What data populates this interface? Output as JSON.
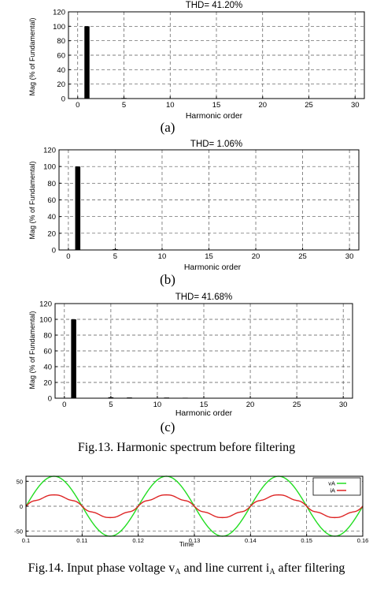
{
  "chart_data": [
    {
      "type": "bar",
      "panel": "(a)",
      "title": "THD= 41.20%",
      "xlabel": "Harmonic order",
      "ylabel": "Mag (% of Fundamental)",
      "xlim": [
        -1,
        31
      ],
      "ylim": [
        0,
        120
      ],
      "xticks": [
        0,
        5,
        10,
        15,
        20,
        25,
        30
      ],
      "yticks": [
        0,
        20,
        40,
        60,
        80,
        100,
        120
      ],
      "x": [
        1,
        5,
        7,
        11,
        13
      ],
      "values": [
        100,
        0.8,
        0.5,
        0.5,
        0.4
      ],
      "grid": true
    },
    {
      "type": "bar",
      "panel": "(b)",
      "title": "THD= 1.06%",
      "xlabel": "Harmonic order",
      "ylabel": "Mag (% of Fundamental)",
      "xlim": [
        -1,
        31
      ],
      "ylim": [
        0,
        120
      ],
      "xticks": [
        0,
        5,
        10,
        15,
        20,
        25,
        30
      ],
      "yticks": [
        0,
        20,
        40,
        60,
        80,
        100,
        120
      ],
      "x": [
        1,
        5
      ],
      "values": [
        100,
        0.9
      ],
      "grid": true
    },
    {
      "type": "bar",
      "panel": "(c)",
      "title": "THD= 41.68%",
      "xlabel": "Harmonic order",
      "ylabel": "Mag (% of Fundamental)",
      "xlim": [
        -1,
        31
      ],
      "ylim": [
        0,
        120
      ],
      "xticks": [
        0,
        5,
        10,
        15,
        20,
        25,
        30
      ],
      "yticks": [
        0,
        20,
        40,
        60,
        80,
        100,
        120
      ],
      "x": [
        1,
        5,
        7,
        11,
        13
      ],
      "values": [
        100,
        1.2,
        0.9,
        0.8,
        0.6
      ],
      "grid": true
    },
    {
      "type": "line",
      "xlabel": "Time",
      "xlim": [
        0.1,
        0.16
      ],
      "ylim": [
        -60,
        60
      ],
      "xticks": [
        0.1,
        0.11,
        0.12,
        0.13,
        0.14,
        0.15,
        0.16
      ],
      "xticklabels": [
        "0.1",
        "0.11",
        "0.12",
        "0.13",
        "0.14",
        "0.15",
        "0.16"
      ],
      "yticks": [
        -50,
        0,
        50
      ],
      "legend_position": "top-right",
      "grid": true,
      "series": [
        {
          "name": "vA",
          "color": "#22dd22",
          "amplitude": 60,
          "frequency_hz": 50,
          "phase": 0
        },
        {
          "name": "iA",
          "color": "#dd2222",
          "amplitude": 22,
          "frequency_hz": 50,
          "phase": 0
        }
      ]
    }
  ],
  "sub_labels": [
    "(a)",
    "(b)",
    "(c)"
  ],
  "fig13_caption": "Fig.13. Harmonic spectrum before filtering",
  "fig14_caption": {
    "prefix": "Fig.14. Input phase voltage v",
    "sub1": "A",
    "middle": " and line current i",
    "sub2": "A",
    "suffix": " after filtering"
  }
}
